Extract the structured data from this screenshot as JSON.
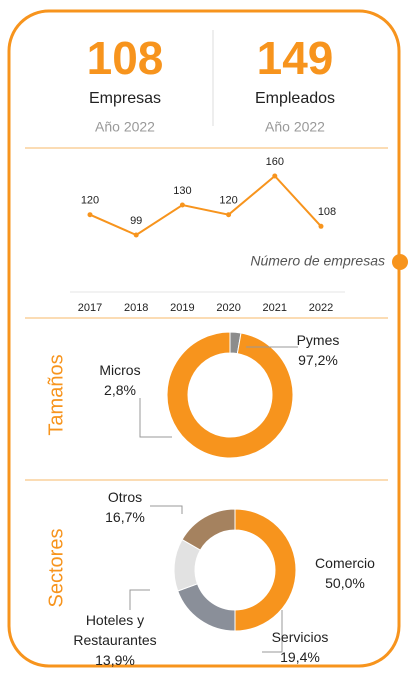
{
  "kpis": [
    {
      "value": 108,
      "label": "Empresas",
      "year": "Año 2022"
    },
    {
      "value": 149,
      "label": "Empleados",
      "year": "Año 2022"
    }
  ],
  "chart_data": [
    {
      "type": "line",
      "categories": [
        "2017",
        "2018",
        "2019",
        "2020",
        "2021",
        "2022"
      ],
      "values": [
        120,
        99,
        130,
        120,
        160,
        108
      ],
      "color": "#f7941d",
      "annotation": "Número de empresas"
    },
    {
      "type": "pie",
      "title": "Tamaños",
      "categories": [
        "Micros",
        "Pymes"
      ],
      "values": [
        2.8,
        97.2
      ],
      "value_labels": [
        "2,8%",
        "97,2%"
      ],
      "colors": [
        "#8c8c8c",
        "#f7941d"
      ]
    },
    {
      "type": "pie",
      "title": "Sectores",
      "categories": [
        "Comercio",
        "Servicios",
        "Hoteles y Restaurantes",
        "Otros"
      ],
      "values": [
        50.0,
        19.4,
        13.9,
        16.7
      ],
      "value_labels": [
        "50,0%",
        "19,4%",
        "13,9%",
        "16,7%"
      ],
      "colors": [
        "#f7941d",
        "#8a8f99",
        "#e2e2e2",
        "#a5825f"
      ]
    }
  ]
}
